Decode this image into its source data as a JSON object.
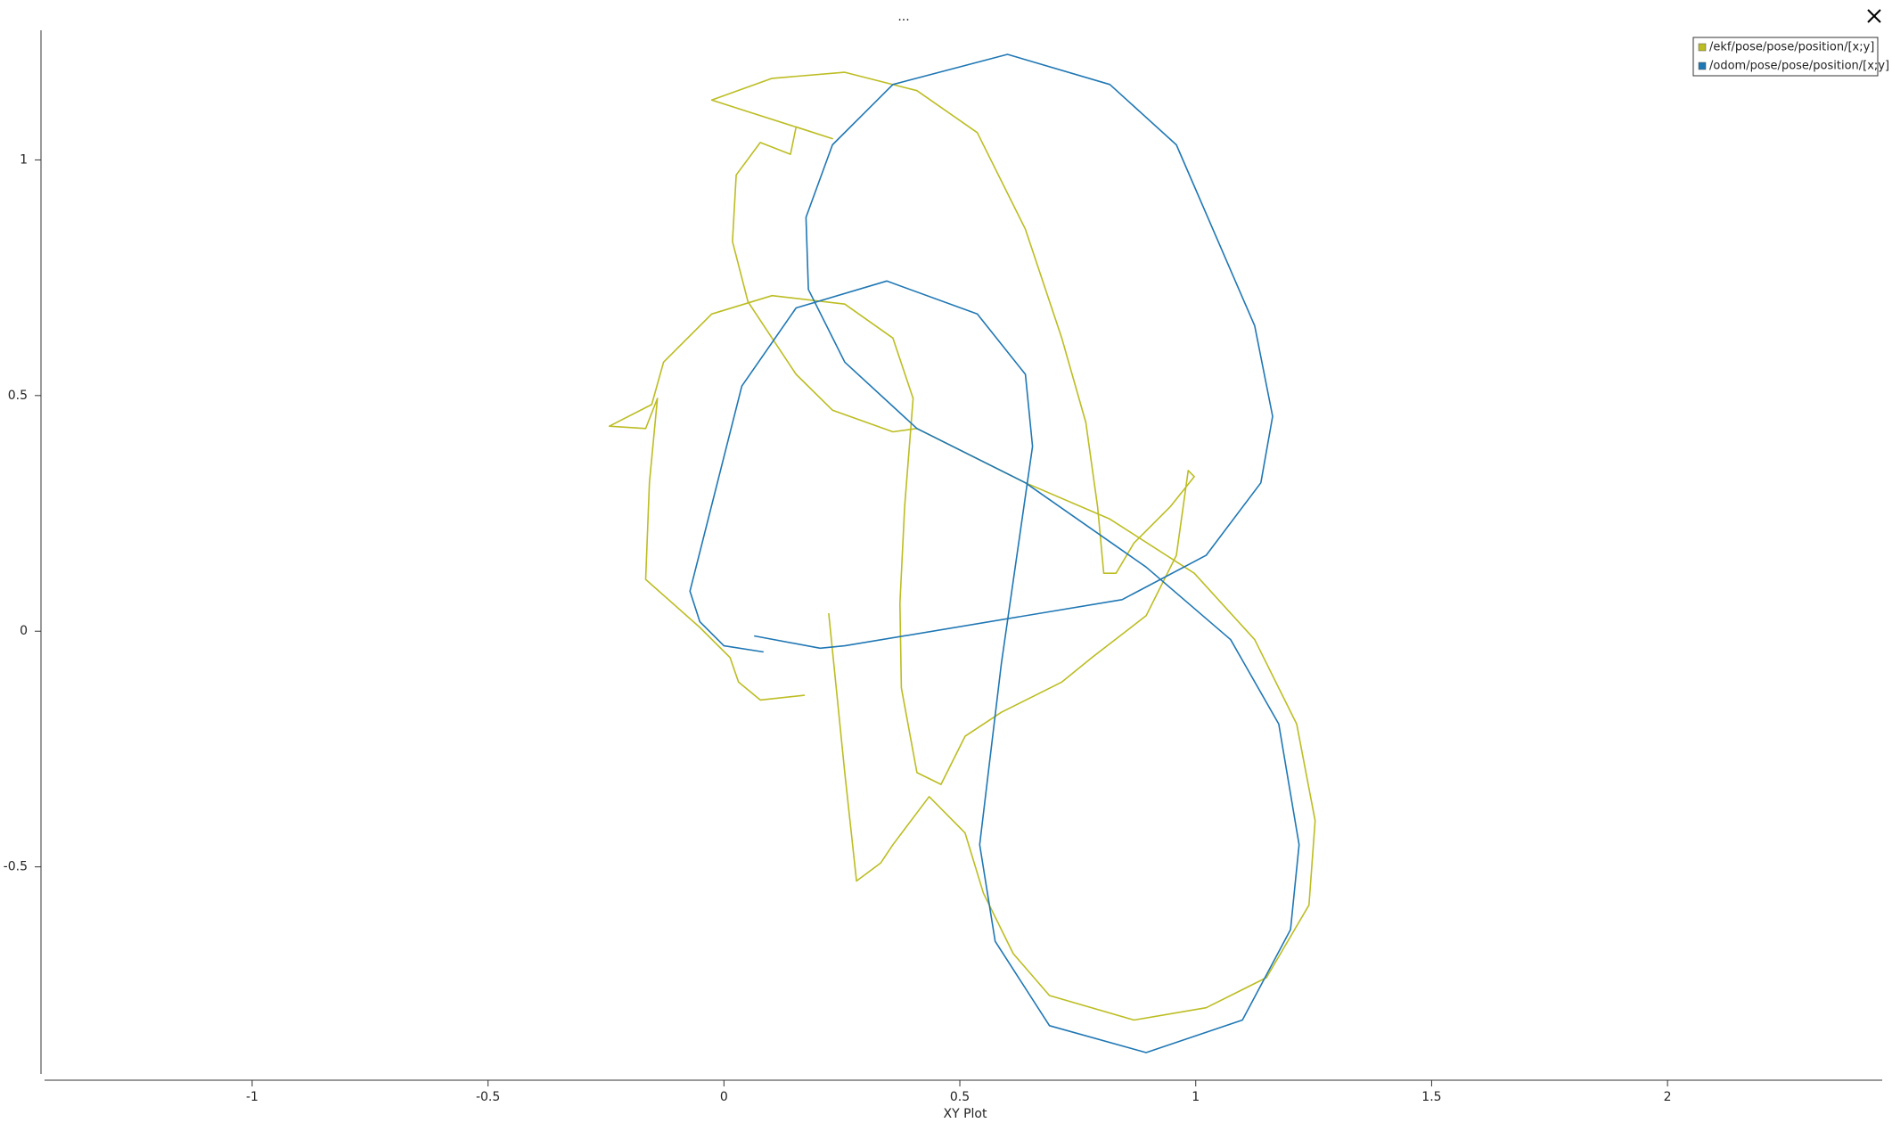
{
  "toolbar_text": "...",
  "chart_data": {
    "type": "line",
    "title": "XY Plot",
    "xlim": [
      -1.44,
      2.455
    ],
    "ylim": [
      -0.947,
      1.275
    ],
    "xticks": [
      -1,
      -0.5,
      0,
      0.5,
      1,
      1.5,
      2
    ],
    "yticks": [
      -0.5,
      0,
      0.5,
      1
    ],
    "grid": false,
    "legend": "top-right",
    "series": [
      {
        "name": "/ekf/pose/pose/position/[x;y]",
        "color": "#bcbd22",
        "x": [
          0.171,
          0.077,
          0.031,
          0.013,
          -0.051,
          -0.166,
          -0.158,
          -0.141,
          -0.166,
          -0.243,
          -0.153,
          -0.128,
          -0.026,
          0.102,
          0.256,
          0.358,
          0.401,
          0.383,
          0.373,
          0.376,
          0.409,
          0.46,
          0.511,
          0.588,
          0.716,
          0.78,
          0.895,
          0.959,
          0.984,
          0.997,
          0.946,
          0.869,
          0.831,
          0.805,
          0.792,
          0.767,
          0.716,
          0.639,
          0.537,
          0.409,
          0.256,
          0.102,
          -0.026,
          0.23,
          0.153,
          0.141,
          0.077,
          0.026,
          0.018,
          0.051,
          0.153,
          0.23,
          0.358,
          0.409,
          0.639,
          0.818,
          0.997,
          1.125,
          1.214,
          1.253,
          1.24,
          1.15,
          1.022,
          0.869,
          0.69,
          0.613,
          0.55,
          0.511,
          0.435,
          0.358,
          0.332,
          0.281,
          0.256,
          0.222
        ],
        "values": [
          -0.136,
          -0.146,
          -0.108,
          -0.056,
          0.008,
          0.11,
          0.315,
          0.494,
          0.43,
          0.435,
          0.481,
          0.571,
          0.673,
          0.712,
          0.694,
          0.622,
          0.494,
          0.264,
          0.059,
          -0.12,
          -0.3,
          -0.325,
          -0.223,
          -0.172,
          -0.108,
          -0.056,
          0.033,
          0.161,
          0.341,
          0.328,
          0.264,
          0.187,
          0.123,
          0.123,
          0.264,
          0.443,
          0.622,
          0.853,
          1.058,
          1.147,
          1.186,
          1.173,
          1.127,
          1.045,
          1.07,
          1.012,
          1.037,
          0.968,
          0.827,
          0.699,
          0.545,
          0.469,
          0.423,
          0.43,
          0.315,
          0.238,
          0.123,
          -0.018,
          -0.197,
          -0.402,
          -0.581,
          -0.735,
          -0.799,
          -0.825,
          -0.773,
          -0.684,
          -0.556,
          -0.428,
          -0.351,
          -0.453,
          -0.492,
          -0.53,
          -0.3,
          0.038
        ]
      },
      {
        "name": "/odom/pose/pose/position/[x;y]",
        "color": "#1f77b4",
        "x": [
          0.084,
          0,
          -0.051,
          -0.072,
          0.038,
          0.153,
          0.345,
          0.537,
          0.639,
          0.654,
          0.588,
          0.542,
          0.575,
          0.69,
          0.895,
          1.099,
          1.201,
          1.219,
          1.176,
          1.074,
          0.895,
          0.639,
          0.409,
          0.256,
          0.179,
          0.174,
          0.23,
          0.358,
          0.601,
          0.818,
          0.959,
          1.125,
          1.163,
          1.138,
          1.022,
          0.844,
          0.256,
          0.204,
          0.064
        ],
        "values": [
          -0.044,
          -0.031,
          0.02,
          0.085,
          0.52,
          0.686,
          0.743,
          0.673,
          0.545,
          0.392,
          -0.069,
          -0.453,
          -0.658,
          -0.837,
          -0.894,
          -0.825,
          -0.633,
          -0.453,
          -0.197,
          -0.018,
          0.136,
          0.315,
          0.43,
          0.571,
          0.725,
          0.878,
          1.032,
          1.16,
          1.224,
          1.16,
          1.032,
          0.648,
          0.456,
          0.315,
          0.161,
          0.067,
          -0.031,
          -0.036,
          -0.01
        ]
      }
    ]
  }
}
